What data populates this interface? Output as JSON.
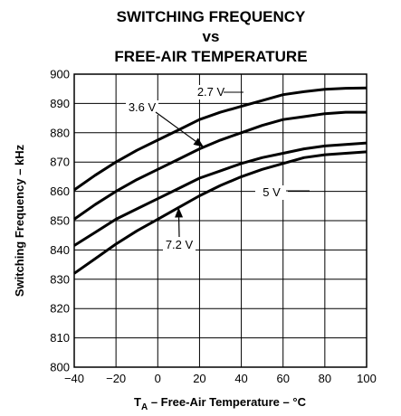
{
  "chart_data": {
    "type": "line",
    "title_lines": [
      "SWITCHING FREQUENCY",
      "vs",
      "FREE-AIR TEMPERATURE"
    ],
    "xlabel": {
      "prefix": "T",
      "subscript": "A",
      "rest": " – Free-Air Temperature – °C"
    },
    "ylabel": "Switching Frequency – kHz",
    "xlim": [
      -40,
      100
    ],
    "ylim": [
      800,
      900
    ],
    "xticks": [
      -40,
      -20,
      0,
      20,
      40,
      60,
      80,
      100
    ],
    "yticks": [
      800,
      810,
      820,
      830,
      840,
      850,
      860,
      870,
      880,
      890,
      900
    ],
    "grid": true,
    "x": [
      -40,
      -30,
      -20,
      -10,
      0,
      10,
      20,
      30,
      40,
      50,
      60,
      70,
      80,
      90,
      100
    ],
    "series": [
      {
        "name": "2.7 V",
        "values": [
          860.5,
          865.5,
          870,
          874,
          877.5,
          881,
          884.5,
          887,
          889,
          891,
          893,
          894,
          894.8,
          895.2,
          895.3
        ]
      },
      {
        "name": "3.6 V",
        "values": [
          850.5,
          855.5,
          860,
          864,
          867.5,
          871,
          874.5,
          877.5,
          880,
          882.5,
          884.5,
          885.5,
          886.5,
          887,
          887
        ]
      },
      {
        "name": "5 V",
        "values": [
          841.5,
          846,
          850.5,
          854,
          857.5,
          861,
          864.5,
          867,
          869.5,
          871.5,
          873,
          874.5,
          875.5,
          876,
          876.5
        ]
      },
      {
        "name": "7.2 V",
        "values": [
          832,
          837,
          842,
          846.5,
          850.5,
          854.5,
          858.5,
          862,
          865,
          867.5,
          869.5,
          871.5,
          872.5,
          873,
          873.5
        ]
      }
    ],
    "annotations": [
      {
        "text": "2.7 V",
        "series": "2.7 V"
      },
      {
        "text": "3.6 V",
        "series": "3.6 V"
      },
      {
        "text": "5 V",
        "series": "5 V"
      },
      {
        "text": "7.2 V",
        "series": "7.2 V"
      }
    ]
  }
}
